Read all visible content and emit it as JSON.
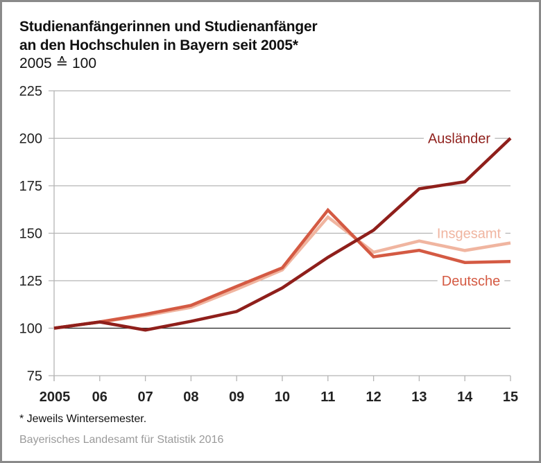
{
  "chart_data": {
    "type": "line",
    "title": "Studienanfängerinnen und Studienanfänger an den Hochschulen in Bayern seit 2005*",
    "title_lines": [
      "Studienanfängerinnen und Studienanfänger",
      "an den Hochschulen in Bayern seit 2005*"
    ],
    "subtitle": "2005 ≙ 100",
    "xlabel": "",
    "ylabel": "",
    "x": [
      "2005",
      "06",
      "07",
      "08",
      "09",
      "10",
      "11",
      "12",
      "13",
      "14",
      "15"
    ],
    "ylim": [
      75,
      225
    ],
    "yticks": [
      75,
      100,
      125,
      150,
      175,
      200,
      225
    ],
    "grid": true,
    "reference_line": 100,
    "series": [
      {
        "name": "Insgesamt",
        "color": "#f0b5a0",
        "values": [
          100,
          103.3,
          106.6,
          111,
          120.5,
          130.7,
          158.5,
          140,
          145.9,
          140.9,
          144.9
        ]
      },
      {
        "name": "Deutsche",
        "color": "#d45a43",
        "values": [
          100,
          103.3,
          107.3,
          112,
          122,
          131.8,
          162.2,
          137.6,
          141,
          134.6,
          135.1
        ]
      },
      {
        "name": "Ausländer",
        "color": "#8f1f1b",
        "values": [
          100,
          103.3,
          99,
          103.6,
          108.8,
          121.2,
          137.3,
          151.6,
          173.4,
          177.1,
          200
        ]
      }
    ],
    "legend": [
      {
        "name": "Ausländer",
        "anchor_value": 200,
        "placement": "right"
      },
      {
        "name": "Insgesamt",
        "anchor_value": 150,
        "placement": "right"
      },
      {
        "name": "Deutsche",
        "anchor_value": 125,
        "placement": "right"
      }
    ]
  },
  "footnote": "* Jeweils Wintersemester.",
  "source": "Bayerisches Landesamt für Statistik 2016"
}
